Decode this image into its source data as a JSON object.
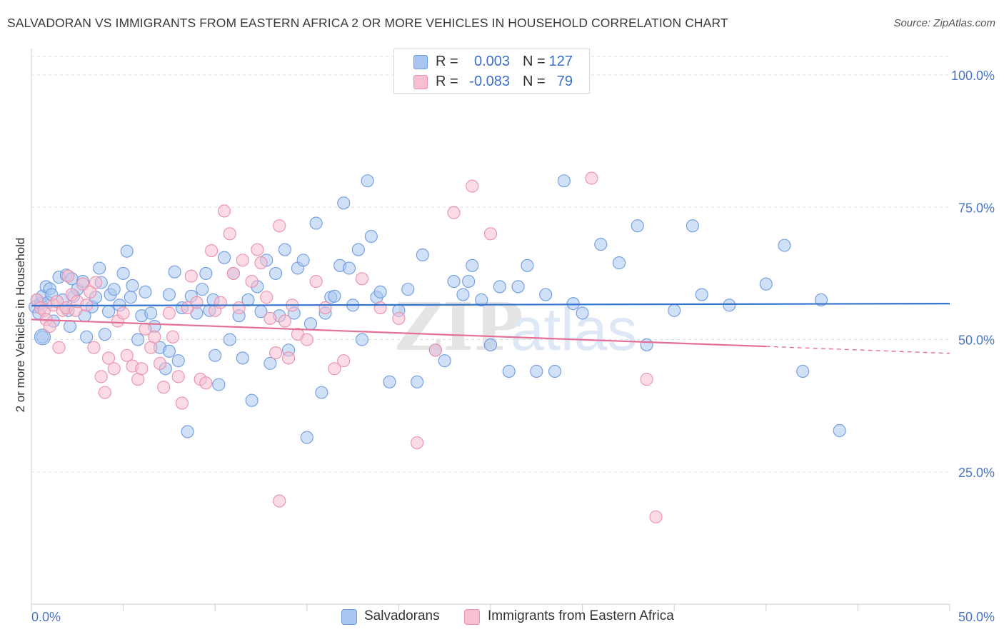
{
  "title": "SALVADORAN VS IMMIGRANTS FROM EASTERN AFRICA 2 OR MORE VEHICLES IN HOUSEHOLD CORRELATION CHART",
  "source": "Source: ZipAtlas.com",
  "watermark": {
    "zip": "ZIP",
    "atlas": "atlas"
  },
  "legend": {
    "rows": [
      {
        "r_label": "R =",
        "r_value": "0.003",
        "n_label": "N =",
        "n_value": "127",
        "color": "#a8c6f0",
        "border": "#6f9be0"
      },
      {
        "r_label": "R =",
        "r_value": "-0.083",
        "n_label": "N =",
        "n_value": "79",
        "color": "#f7c0d0",
        "border": "#ea8fac"
      }
    ]
  },
  "bottom_legend": [
    {
      "label": "Salvadorans",
      "color": "#a8c6f0",
      "border": "#6f9be0"
    },
    {
      "label": "Immigrants from Eastern Africa",
      "color": "#f7c0d0",
      "border": "#ea8fac"
    }
  ],
  "chart_data": {
    "type": "scatter",
    "title": "SALVADORAN VS IMMIGRANTS FROM EASTERN AFRICA 2 OR MORE VEHICLES IN HOUSEHOLD CORRELATION CHART",
    "xlabel": "",
    "ylabel": "2 or more Vehicles in Household",
    "xlim": [
      0,
      50
    ],
    "ylim": [
      0,
      105
    ],
    "x_tick_labels": [
      "0.0%",
      "50.0%"
    ],
    "y_tick_values": [
      25,
      50,
      75,
      100
    ],
    "y_tick_labels": [
      "25.0%",
      "50.0%",
      "75.0%",
      "100.0%"
    ],
    "grid": true,
    "series": [
      {
        "name": "Salvadorans",
        "color": "#6f9be0",
        "fill": "#a8c6f0",
        "trend": {
          "x": [
            0,
            50
          ],
          "y": [
            56.4,
            56.8
          ]
        },
        "points": [
          [
            0.2,
            56.2
          ],
          [
            0.3,
            57.5
          ],
          [
            0.4,
            55.0
          ],
          [
            0.5,
            56.8
          ],
          [
            0.6,
            58.2
          ],
          [
            0.8,
            60.0
          ],
          [
            0.9,
            57.0
          ],
          [
            1.0,
            59.6
          ],
          [
            1.1,
            58.5
          ],
          [
            1.2,
            53.5
          ],
          [
            1.5,
            61.8
          ],
          [
            1.7,
            57.5
          ],
          [
            1.9,
            62.2
          ],
          [
            2.0,
            55.5
          ],
          [
            2.2,
            61.5
          ],
          [
            2.3,
            58.2
          ],
          [
            2.5,
            59.5
          ],
          [
            2.8,
            61.0
          ],
          [
            2.9,
            54.5
          ],
          [
            3.0,
            50.5
          ],
          [
            3.3,
            56.2
          ],
          [
            3.5,
            58.0
          ],
          [
            3.7,
            63.5
          ],
          [
            3.8,
            60.8
          ],
          [
            4.0,
            51.0
          ],
          [
            4.2,
            55.3
          ],
          [
            4.3,
            58.5
          ],
          [
            4.5,
            59.5
          ],
          [
            4.8,
            56.5
          ],
          [
            5.0,
            62.5
          ],
          [
            5.2,
            66.7
          ],
          [
            5.4,
            58.0
          ],
          [
            5.5,
            60.2
          ],
          [
            5.8,
            50.0
          ],
          [
            6.0,
            54.5
          ],
          [
            6.2,
            59.0
          ],
          [
            6.5,
            55.0
          ],
          [
            6.7,
            52.5
          ],
          [
            7.0,
            48.5
          ],
          [
            7.3,
            44.5
          ],
          [
            7.5,
            58.5
          ],
          [
            7.8,
            62.8
          ],
          [
            8.0,
            46.0
          ],
          [
            8.2,
            56.0
          ],
          [
            8.5,
            32.6
          ],
          [
            8.7,
            58.2
          ],
          [
            9.0,
            55.0
          ],
          [
            9.3,
            59.5
          ],
          [
            9.5,
            62.5
          ],
          [
            9.7,
            55.5
          ],
          [
            10.0,
            47.0
          ],
          [
            10.2,
            41.5
          ],
          [
            10.5,
            65.5
          ],
          [
            10.8,
            50.0
          ],
          [
            11.0,
            62.5
          ],
          [
            11.3,
            54.5
          ],
          [
            11.5,
            46.5
          ],
          [
            11.8,
            57.5
          ],
          [
            12.0,
            38.5
          ],
          [
            12.3,
            60.0
          ],
          [
            12.5,
            55.3
          ],
          [
            12.8,
            65.0
          ],
          [
            13.0,
            45.5
          ],
          [
            13.3,
            62.5
          ],
          [
            13.5,
            54.5
          ],
          [
            13.8,
            67.0
          ],
          [
            14.0,
            48.0
          ],
          [
            14.3,
            55.0
          ],
          [
            14.5,
            63.5
          ],
          [
            14.8,
            65.0
          ],
          [
            15.0,
            31.5
          ],
          [
            15.2,
            53.0
          ],
          [
            15.5,
            72.0
          ],
          [
            15.8,
            40.0
          ],
          [
            16.0,
            55.0
          ],
          [
            16.3,
            58.0
          ],
          [
            16.5,
            58.2
          ],
          [
            16.8,
            64.0
          ],
          [
            17.0,
            75.8
          ],
          [
            17.3,
            63.5
          ],
          [
            17.5,
            56.5
          ],
          [
            17.8,
            67.0
          ],
          [
            18.0,
            50.0
          ],
          [
            18.3,
            80.0
          ],
          [
            18.5,
            69.5
          ],
          [
            18.8,
            58.0
          ],
          [
            19.0,
            59.0
          ],
          [
            19.5,
            42.0
          ],
          [
            20.0,
            55.5
          ],
          [
            20.5,
            59.5
          ],
          [
            21.0,
            42.0
          ],
          [
            21.3,
            66.0
          ],
          [
            22.0,
            48.0
          ],
          [
            22.5,
            46.0
          ],
          [
            23.0,
            61.0
          ],
          [
            23.5,
            58.5
          ],
          [
            23.8,
            61.0
          ],
          [
            24.0,
            64.0
          ],
          [
            24.5,
            57.5
          ],
          [
            25.0,
            49.0
          ],
          [
            25.5,
            60.0
          ],
          [
            26.0,
            44.0
          ],
          [
            26.5,
            60.0
          ],
          [
            27.0,
            64.0
          ],
          [
            27.5,
            44.0
          ],
          [
            28.0,
            58.5
          ],
          [
            28.5,
            44.0
          ],
          [
            29.0,
            80.0
          ],
          [
            29.5,
            56.8
          ],
          [
            30.0,
            55.0
          ],
          [
            31.0,
            68.0
          ],
          [
            32.0,
            64.5
          ],
          [
            33.0,
            71.5
          ],
          [
            33.5,
            49.0
          ],
          [
            35.0,
            55.5
          ],
          [
            36.0,
            71.5
          ],
          [
            36.5,
            58.5
          ],
          [
            38.0,
            56.5
          ],
          [
            40.0,
            60.5
          ],
          [
            41.0,
            67.8
          ],
          [
            42.0,
            44.0
          ],
          [
            43.0,
            57.5
          ],
          [
            44.0,
            32.8
          ],
          [
            0.6,
            50.5
          ],
          [
            2.1,
            52.5
          ],
          [
            9.9,
            57.5
          ],
          [
            7.5,
            47.8
          ]
        ]
      },
      {
        "name": "Immigrants from Eastern Africa",
        "color": "#ea8fac",
        "fill": "#f7c0d0",
        "trend": {
          "x": [
            0,
            40
          ],
          "y": [
            53.8,
            48.7
          ],
          "dashed_to": {
            "x": 50,
            "y": 47.4
          }
        },
        "points": [
          [
            0.3,
            57.5
          ],
          [
            0.5,
            56.0
          ],
          [
            0.7,
            55.5
          ],
          [
            0.8,
            53.8
          ],
          [
            1.0,
            52.5
          ],
          [
            1.2,
            56.5
          ],
          [
            1.4,
            57.2
          ],
          [
            1.5,
            48.5
          ],
          [
            1.7,
            55.5
          ],
          [
            1.9,
            56.0
          ],
          [
            2.0,
            62.0
          ],
          [
            2.2,
            58.5
          ],
          [
            2.4,
            55.5
          ],
          [
            2.5,
            57.2
          ],
          [
            2.8,
            60.5
          ],
          [
            3.0,
            56.5
          ],
          [
            3.2,
            59.0
          ],
          [
            3.4,
            48.5
          ],
          [
            3.5,
            60.8
          ],
          [
            3.8,
            43.0
          ],
          [
            4.0,
            40.0
          ],
          [
            4.2,
            46.5
          ],
          [
            4.5,
            44.5
          ],
          [
            4.7,
            53.5
          ],
          [
            5.0,
            55.0
          ],
          [
            5.2,
            47.0
          ],
          [
            5.5,
            45.0
          ],
          [
            5.8,
            42.5
          ],
          [
            6.0,
            44.5
          ],
          [
            6.2,
            52.0
          ],
          [
            6.5,
            48.5
          ],
          [
            6.7,
            50.5
          ],
          [
            7.0,
            45.5
          ],
          [
            7.2,
            41.0
          ],
          [
            7.5,
            55.0
          ],
          [
            7.7,
            50.5
          ],
          [
            8.0,
            43.0
          ],
          [
            8.2,
            38.0
          ],
          [
            8.5,
            56.0
          ],
          [
            8.7,
            62.0
          ],
          [
            9.0,
            57.0
          ],
          [
            9.2,
            42.5
          ],
          [
            9.5,
            41.8
          ],
          [
            9.8,
            66.8
          ],
          [
            10.0,
            55.5
          ],
          [
            10.3,
            57.0
          ],
          [
            10.5,
            74.3
          ],
          [
            10.8,
            70.0
          ],
          [
            11.0,
            62.5
          ],
          [
            11.3,
            56.0
          ],
          [
            11.5,
            65.0
          ],
          [
            12.0,
            61.0
          ],
          [
            12.3,
            67.0
          ],
          [
            12.5,
            64.5
          ],
          [
            12.8,
            58.0
          ],
          [
            13.0,
            54.0
          ],
          [
            13.3,
            47.5
          ],
          [
            13.5,
            71.5
          ],
          [
            13.8,
            53.5
          ],
          [
            14.0,
            46.5
          ],
          [
            14.5,
            51.0
          ],
          [
            15.0,
            50.0
          ],
          [
            15.5,
            61.0
          ],
          [
            16.0,
            56.0
          ],
          [
            16.5,
            44.5
          ],
          [
            17.0,
            46.0
          ],
          [
            18.0,
            61.5
          ],
          [
            19.0,
            56.0
          ],
          [
            20.0,
            54.0
          ],
          [
            21.0,
            30.5
          ],
          [
            22.0,
            48.0
          ],
          [
            23.0,
            74.0
          ],
          [
            24.0,
            79.0
          ],
          [
            25.0,
            70.0
          ],
          [
            13.5,
            19.5
          ],
          [
            30.5,
            80.5
          ],
          [
            33.5,
            42.5
          ],
          [
            34.0,
            16.5
          ],
          [
            14.2,
            56.5
          ]
        ]
      }
    ]
  }
}
